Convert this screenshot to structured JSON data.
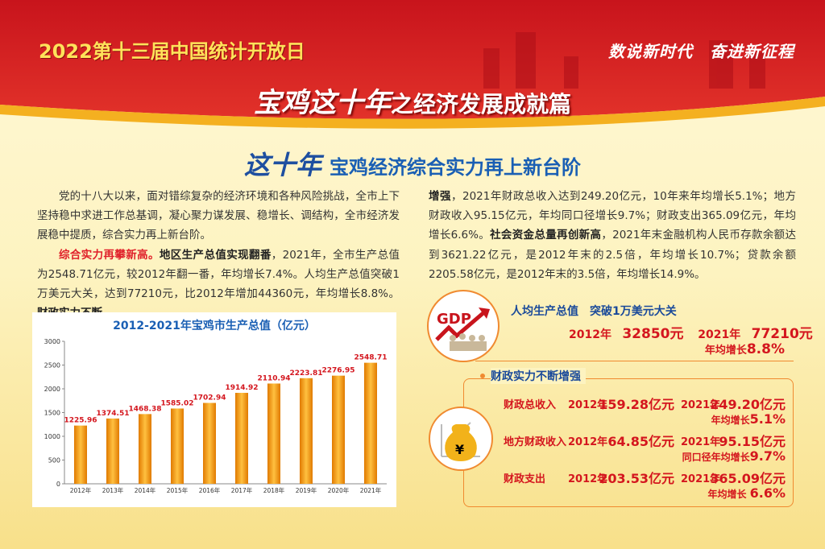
{
  "header": {
    "event": "2022第十三届中国统计开放日",
    "slogan": "数说新时代　奋进新征程",
    "title_big": "宝鸡这十年",
    "title_rest": "之经济发展成就篇"
  },
  "subtitle": {
    "big": "这十年",
    "rest": "宝鸡经济综合实力再上新台阶"
  },
  "left_text": {
    "p1": "党的十八大以来，面对错综复杂的经济环境和各种风险挑战，全市上下坚持稳中求进工作总基调，凝心聚力谋发展、稳增长、调结构，全市经济发展稳中提质，综合实力再上新台阶。",
    "p2_red": "综合实力再攀新高。",
    "p2_bold": "地区生产总值实现翻番",
    "p2_text": "，2021年，全市生产总值为2548.71亿元，较2012年翻一番，年均增长7.4%。人均生产总值突破1万美元大关，达到77210元，比2012年增加44360元，年均增长8.8%。",
    "p2_bold2": "财政实力不断"
  },
  "right_text": {
    "bold1": "增强",
    "t1": "，2021年财政总收入达到249.20亿元，10年来年均增长5.1%；地方财政收入95.15亿元，年均同口径增长9.7%；财政支出365.09亿元，年均增长6.6%。",
    "bold2": "社会资金总量再创新高",
    "t2": "，2021年末金融机构人民币存款余额达到3621.22亿元，是2012年末的2.5倍，年均增长10.7%；贷款余额2205.58亿元，是2012年末的3.5倍，年均增长14.9%。"
  },
  "chart_data": {
    "type": "bar",
    "title": "2012-2021年宝鸡市生产总值（亿元）",
    "categories": [
      "2012年",
      "2013年",
      "2014年",
      "2015年",
      "2016年",
      "2017年",
      "2018年",
      "2019年",
      "2020年",
      "2021年"
    ],
    "values": [
      1225.96,
      1374.51,
      1468.38,
      1585.02,
      1702.94,
      1914.92,
      2110.94,
      2223.81,
      2276.95,
      2548.71
    ],
    "labels": [
      "1225.96",
      "1374.51",
      "1468.38",
      "1585.02",
      "1702.94",
      "1914.92",
      "2110.94",
      "2223.81",
      "2276.95",
      "2548.71"
    ],
    "yticks": [
      "0",
      "500",
      "1000",
      "1500",
      "2000",
      "2500",
      "3000"
    ],
    "ylim": [
      0,
      3000
    ],
    "bar_color": "#f29a10",
    "label_color": "#d4161e"
  },
  "gdp": {
    "icon_text": "GDP",
    "title": "人均生产总值　突破1万美元大关",
    "y1": "2012年",
    "v1": "32850元",
    "y2": "2021年",
    "v2": "77210元",
    "growth_label": "年均增长",
    "growth": "8.8%"
  },
  "fiscal": {
    "title": "财政实力不断增强",
    "rows": [
      {
        "name": "财政总收入",
        "y1": "2012年",
        "v1": "159.28亿元",
        "y2": "2021年",
        "v2": "249.20亿元",
        "glabel": "年均增长",
        "g": "5.1%"
      },
      {
        "name": "地方财政收入",
        "y1": "2012年",
        "v1": "64.85亿元",
        "y2": "2021年",
        "v2": "95.15亿元",
        "glabel": "同口径年均增长",
        "g": "9.7%"
      },
      {
        "name": "财政支出",
        "y1": "2012年",
        "v1": "203.53亿元",
        "y2": "2021年",
        "v2": "365.09亿元",
        "glabel": "年均增长 ",
        "g": "6.6%"
      }
    ],
    "icon_text": "¥"
  }
}
